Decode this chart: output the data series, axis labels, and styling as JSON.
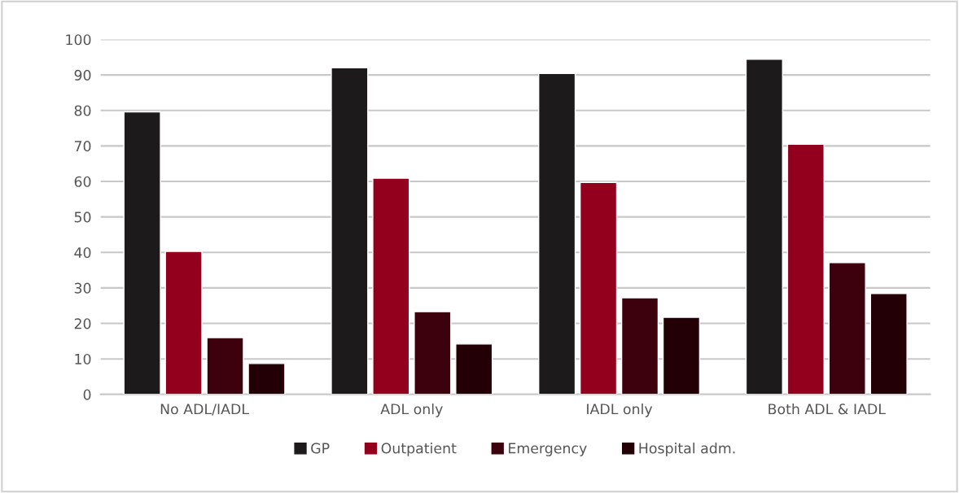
{
  "chart_data": {
    "type": "bar",
    "categories": [
      "No ADL/IADL",
      "ADL only",
      "IADL only",
      "Both ADL & IADL"
    ],
    "series": [
      {
        "name": "GP",
        "color": "#1c1a1b",
        "values": [
          79.6,
          92,
          90.4,
          94.4
        ]
      },
      {
        "name": "Outpatient",
        "color": "#92001e",
        "values": [
          40.3,
          60.9,
          59.7,
          70.5
        ]
      },
      {
        "name": "Emergency",
        "color": "#3d000d",
        "values": [
          16,
          23.3,
          27.2,
          37.1
        ]
      },
      {
        "name": "Hospital adm.",
        "color": "#220005",
        "values": [
          8.7,
          14.2,
          21.7,
          28.4
        ]
      }
    ],
    "ylim": [
      0,
      100
    ],
    "yticks": [
      0,
      10,
      20,
      30,
      40,
      50,
      60,
      70,
      80,
      90,
      100
    ],
    "grid": "y",
    "legend": "bottom"
  }
}
